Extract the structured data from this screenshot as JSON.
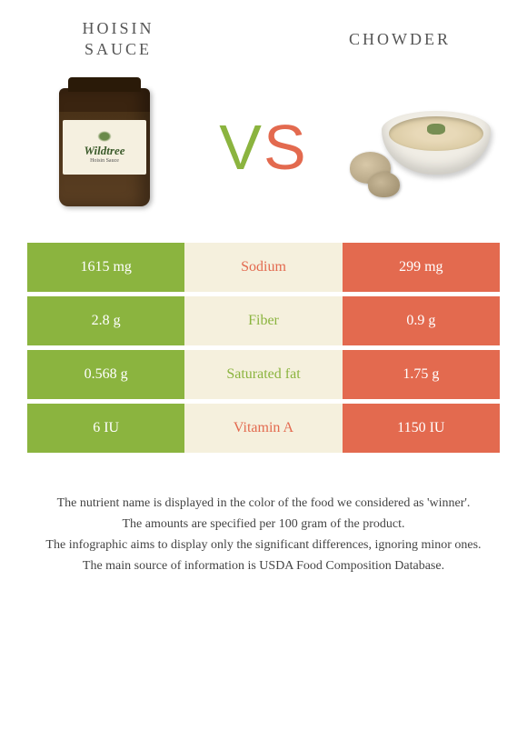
{
  "header": {
    "left_title": "Hoisin sauce",
    "right_title": "Chowder",
    "vs_v": "V",
    "vs_s": "S"
  },
  "jar": {
    "brand": "Wildtree",
    "subtitle": "Hoisin Sauce"
  },
  "colors": {
    "left_food": "#8bb43f",
    "right_food": "#e36a4f",
    "mid_bg": "#f5f0dd"
  },
  "rows": [
    {
      "left": "1615 mg",
      "label": "Sodium",
      "right": "299 mg",
      "winner": "right"
    },
    {
      "left": "2.8 g",
      "label": "Fiber",
      "right": "0.9 g",
      "winner": "left"
    },
    {
      "left": "0.568 g",
      "label": "Saturated fat",
      "right": "1.75 g",
      "winner": "left"
    },
    {
      "left": "6 IU",
      "label": "Vitamin A",
      "right": "1150 IU",
      "winner": "right"
    }
  ],
  "footer": {
    "line1": "The nutrient name is displayed in the color of the food we considered as 'winner'.",
    "line2": "The amounts are specified per 100 gram of the product.",
    "line3": "The infographic aims to display only the significant differences, ignoring minor ones.",
    "line4": "The main source of information is USDA Food Composition Database."
  }
}
